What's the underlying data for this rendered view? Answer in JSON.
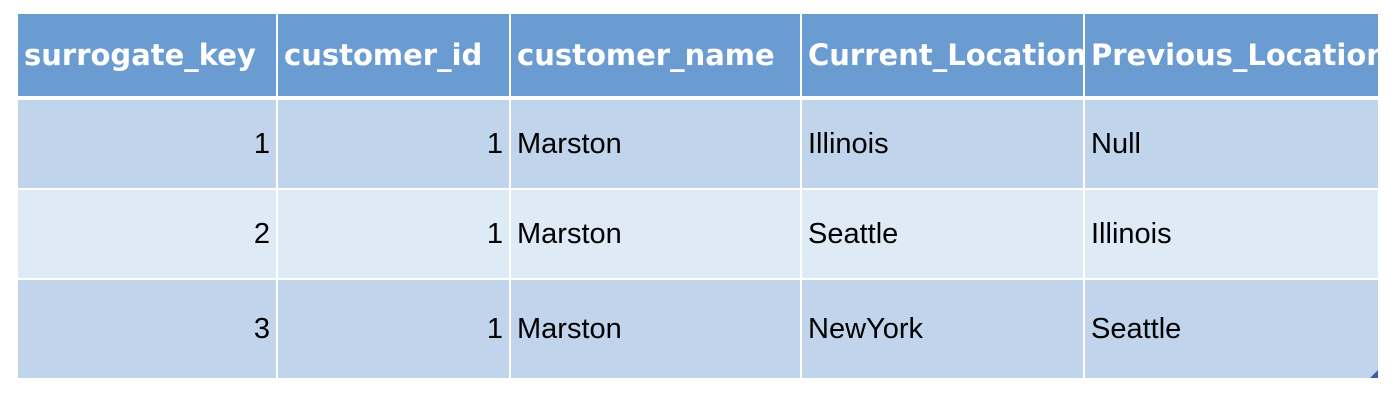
{
  "table": {
    "headers": [
      "surrogate_key",
      "customer_id",
      "customer_name",
      "Current_Location",
      "Previous_Location"
    ],
    "rows": [
      [
        "1",
        "1",
        "Marston",
        "Illinois",
        "Null"
      ],
      [
        "2",
        "1",
        "Marston",
        "Seattle",
        "Illinois"
      ],
      [
        "3",
        "1",
        "Marston",
        "NewYork",
        "Seattle"
      ]
    ]
  },
  "colors": {
    "header_bg": "#6a9bd1",
    "row_dark": "#c0d5eb",
    "row_light": "#deeaf6"
  }
}
